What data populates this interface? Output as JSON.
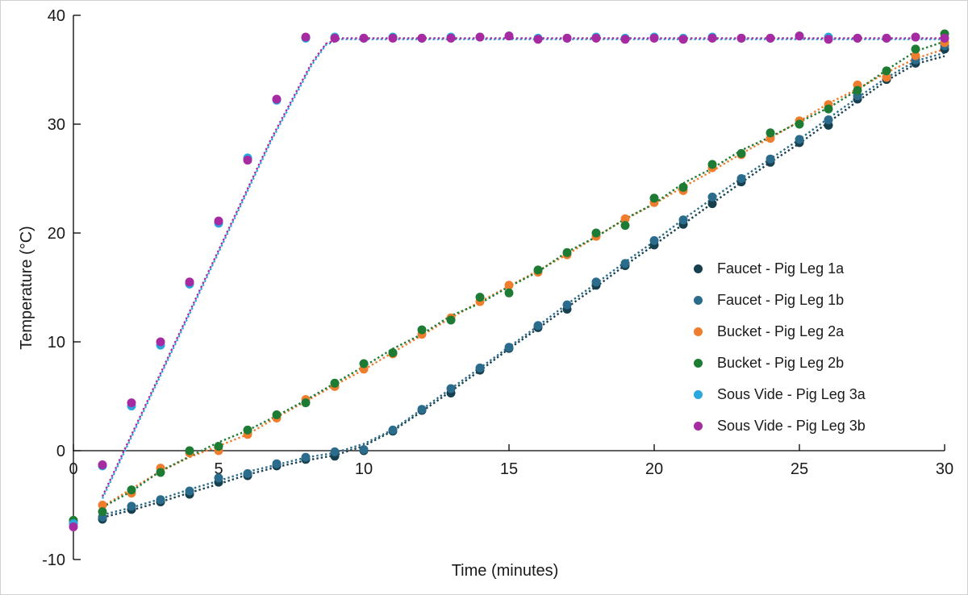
{
  "figure": {
    "background": "#ffffff",
    "border_color": "#d0d0d0",
    "text_color": "#1a1a1a",
    "axis_color": "#000000"
  },
  "chart_data": {
    "type": "scatter",
    "title": "",
    "xlabel": "Time (minutes)",
    "ylabel": "Temperature (°C)",
    "xlim": [
      0,
      30
    ],
    "ylim": [
      -10,
      40
    ],
    "xticks": [
      0,
      5,
      10,
      15,
      20,
      25,
      30
    ],
    "yticks": [
      -10,
      0,
      10,
      20,
      30,
      40
    ],
    "grid": false,
    "legend_position": "middle-right",
    "marker_style": "filled-circle",
    "trendline_style": "dotted",
    "x": [
      0,
      1,
      2,
      3,
      4,
      5,
      6,
      7,
      8,
      9,
      10,
      11,
      12,
      13,
      14,
      15,
      16,
      17,
      18,
      19,
      20,
      21,
      22,
      23,
      24,
      25,
      26,
      27,
      28,
      29,
      30
    ],
    "series": [
      {
        "name": "Faucet - Pig Leg 1a",
        "color": "#17404f",
        "values": [
          -6.7,
          -6.3,
          -5.4,
          -4.7,
          -4.0,
          -2.9,
          -2.3,
          -1.4,
          -0.8,
          -0.5,
          0.0,
          1.8,
          3.7,
          5.3,
          7.4,
          9.4,
          11.3,
          13.0,
          15.2,
          17.0,
          18.9,
          20.8,
          22.7,
          24.7,
          26.5,
          28.3,
          29.9,
          32.3,
          34.1,
          35.6,
          36.9
        ]
      },
      {
        "name": "Faucet - Pig Leg 1b",
        "color": "#2b6b8c",
        "values": [
          -6.5,
          -6.1,
          -5.1,
          -4.5,
          -3.7,
          -2.5,
          -2.1,
          -1.2,
          -0.6,
          -0.1,
          0.1,
          1.9,
          3.8,
          5.7,
          7.6,
          9.5,
          11.5,
          13.4,
          15.5,
          17.2,
          19.3,
          21.2,
          23.3,
          25.0,
          26.8,
          28.6,
          30.4,
          32.6,
          34.3,
          35.9,
          37.2
        ]
      },
      {
        "name": "Bucket - Pig Leg 2a",
        "color": "#ef7d2e",
        "values": [
          -6.5,
          -5.0,
          -3.9,
          -1.6,
          -0.2,
          0.0,
          1.5,
          3.0,
          4.7,
          5.9,
          7.5,
          8.9,
          10.7,
          12.2,
          13.7,
          15.2,
          16.4,
          18.0,
          19.7,
          21.3,
          22.8,
          23.9,
          26.0,
          27.2,
          28.7,
          30.3,
          31.8,
          33.6,
          34.3,
          36.3,
          37.5
        ]
      },
      {
        "name": "Bucket - Pig Leg 2b",
        "color": "#1e7b34",
        "values": [
          -6.4,
          -5.6,
          -3.6,
          -2.0,
          0.0,
          0.4,
          1.9,
          3.3,
          4.4,
          6.2,
          8.0,
          9.0,
          11.1,
          12.0,
          14.1,
          14.5,
          16.6,
          18.2,
          20.0,
          20.7,
          23.2,
          24.2,
          26.3,
          27.3,
          29.2,
          30.0,
          31.4,
          33.1,
          34.9,
          36.9,
          38.3
        ]
      },
      {
        "name": "Sous Vide - Pig Leg 3a",
        "color": "#2aa7df",
        "values": [
          -6.7,
          -1.4,
          4.1,
          9.7,
          15.3,
          20.9,
          26.9,
          32.2,
          37.9,
          38.0,
          37.9,
          38.0,
          37.9,
          38.0,
          38.0,
          38.1,
          37.9,
          37.9,
          38.0,
          37.9,
          38.0,
          37.9,
          38.0,
          37.9,
          37.9,
          38.1,
          38.0,
          37.9,
          37.9,
          38.0,
          37.9
        ],
        "trend_vertices": [
          [
            1,
            -4.4
          ],
          [
            6.8,
            28.4
          ],
          [
            7.6,
            32.4
          ],
          [
            8.2,
            35.4
          ],
          [
            8.7,
            37.3
          ],
          [
            9.2,
            37.8
          ],
          [
            30,
            37.8
          ]
        ]
      },
      {
        "name": "Sous Vide - Pig Leg 3b",
        "color": "#a62aa0",
        "values": [
          -7.0,
          -1.3,
          4.4,
          10.0,
          15.5,
          21.1,
          26.7,
          32.3,
          38.0,
          37.9,
          37.9,
          37.9,
          37.9,
          37.9,
          38.0,
          38.1,
          37.8,
          37.9,
          37.9,
          37.8,
          37.9,
          37.8,
          37.9,
          37.9,
          37.9,
          38.1,
          37.8,
          37.9,
          37.9,
          38.0,
          37.9
        ],
        "trend_vertices": [
          [
            1,
            -4.2
          ],
          [
            6.8,
            28.6
          ],
          [
            7.6,
            32.6
          ],
          [
            8.2,
            35.6
          ],
          [
            8.7,
            37.4
          ],
          [
            9.2,
            37.9
          ],
          [
            30,
            37.9
          ]
        ]
      }
    ]
  },
  "legend": {
    "entries": [
      "Faucet - Pig Leg 1a",
      "Faucet - Pig Leg 1b",
      "Bucket - Pig Leg 2a",
      "Bucket - Pig Leg 2b",
      "Sous Vide - Pig Leg 3a",
      "Sous Vide - Pig Leg 3b"
    ]
  }
}
